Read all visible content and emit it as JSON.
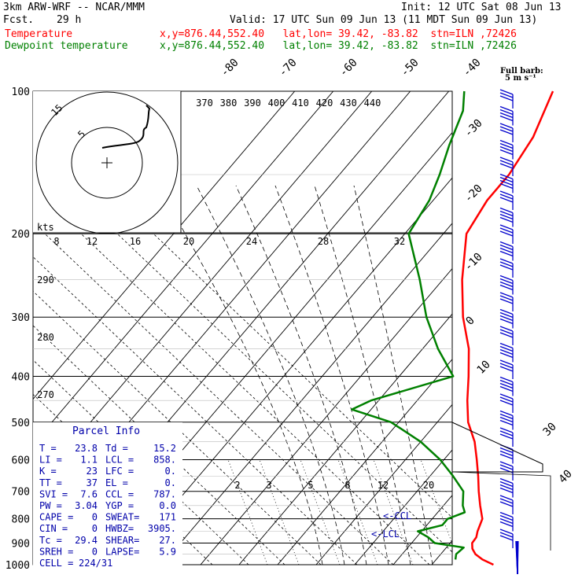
{
  "header": {
    "model": "3km ARW-WRF -- NCAR/MMM",
    "init": "Init: 12 UTC Sat 08 Jun 13",
    "fcst_label": "Fcst.",
    "fcst_value": "29 h",
    "valid": "Valid: 17 UTC Sun 09 Jun 13 (11 MDT Sun 09 Jun 13)",
    "temp_label": "Temperature",
    "temp_info": "x,y=876.44,552.40   lat,lon= 39.42, -83.82  stn=ILN ,72426",
    "dew_label": "Dewpoint temperature",
    "dew_info": "x,y=876.44,552.40   lat,lon= 39.42, -83.82  stn=ILN ,72426",
    "barb_note_1": "Full barb:",
    "barb_note_2": "5 m s⁻¹"
  },
  "colors": {
    "temperature": "#ff0000",
    "dewpoint": "#008000",
    "barbs": "#0000cc",
    "parcel": "#0000aa"
  },
  "chart_data": {
    "type": "skew-t",
    "y_axis": "pressure (hPa), log scale",
    "ylim": [
      1000,
      100
    ],
    "pressure_ticks": [
      100,
      200,
      300,
      400,
      500,
      600,
      700,
      800,
      900,
      1000
    ],
    "isotherm_labels": [
      "-80",
      "-70",
      "-60",
      "-50",
      "-40",
      "-30",
      "-20",
      "-10",
      "0",
      "10",
      "30",
      "40"
    ],
    "theta_labels_top": [
      "370",
      "380",
      "390",
      "400",
      "410",
      "420",
      "430",
      "440"
    ],
    "theta_labels_left": [
      "290",
      "280",
      "270"
    ],
    "mixing_ratio_labels": [
      "2",
      "3",
      "5",
      "8",
      "12",
      "20"
    ],
    "hodograph": {
      "unit_label": "kts",
      "ring_labels": [
        "5",
        "15"
      ],
      "scale_labels": [
        "8",
        "12",
        "16",
        "20",
        "24",
        "28",
        "32"
      ]
    },
    "temperature": [
      {
        "p": 1000,
        "t": 26
      },
      {
        "p": 975,
        "t": 22
      },
      {
        "p": 950,
        "t": 19
      },
      {
        "p": 925,
        "t": 17
      },
      {
        "p": 900,
        "t": 15.7
      },
      {
        "p": 875,
        "t": 15.5
      },
      {
        "p": 850,
        "t": 14.5
      },
      {
        "p": 800,
        "t": 13
      },
      {
        "p": 750,
        "t": 9.5
      },
      {
        "p": 700,
        "t": 6
      },
      {
        "p": 650,
        "t": 2.5
      },
      {
        "p": 600,
        "t": -1.5
      },
      {
        "p": 550,
        "t": -6
      },
      {
        "p": 500,
        "t": -12
      },
      {
        "p": 450,
        "t": -17
      },
      {
        "p": 400,
        "t": -22
      },
      {
        "p": 350,
        "t": -28
      },
      {
        "p": 300,
        "t": -36.5
      },
      {
        "p": 250,
        "t": -45
      },
      {
        "p": 200,
        "t": -54
      },
      {
        "p": 170,
        "t": -56
      },
      {
        "p": 150,
        "t": -56
      },
      {
        "p": 125,
        "t": -58
      },
      {
        "p": 100,
        "t": -63
      }
    ],
    "dewpoint": [
      {
        "p": 975,
        "t": 15
      },
      {
        "p": 950,
        "t": 14
      },
      {
        "p": 920,
        "t": 14.5
      },
      {
        "p": 900,
        "t": 6
      },
      {
        "p": 875,
        "t": 3
      },
      {
        "p": 850,
        "t": -1
      },
      {
        "p": 825,
        "t": 4
      },
      {
        "p": 800,
        "t": 4
      },
      {
        "p": 775,
        "t": 7
      },
      {
        "p": 750,
        "t": 5
      },
      {
        "p": 700,
        "t": 2
      },
      {
        "p": 650,
        "t": -4
      },
      {
        "p": 600,
        "t": -11
      },
      {
        "p": 550,
        "t": -20
      },
      {
        "p": 500,
        "t": -32
      },
      {
        "p": 470,
        "t": -45
      },
      {
        "p": 450,
        "t": -42
      },
      {
        "p": 400,
        "t": -26
      },
      {
        "p": 350,
        "t": -36
      },
      {
        "p": 300,
        "t": -46
      },
      {
        "p": 250,
        "t": -56
      },
      {
        "p": 200,
        "t": -69
      },
      {
        "p": 170,
        "t": -71
      },
      {
        "p": 150,
        "t": -74
      },
      {
        "p": 130,
        "t": -78
      },
      {
        "p": 110,
        "t": -82
      },
      {
        "p": 100,
        "t": -86
      }
    ],
    "lcl_label": "<-LCL",
    "ccl_label": "<-CCL",
    "parcel_info": {
      "title": "Parcel Info",
      "rows": [
        [
          "T  =",
          "23.8",
          "Td =",
          "15.2"
        ],
        [
          "LI =",
          "1.1",
          "LCL =",
          "858."
        ],
        [
          "K  =",
          "23",
          "LFC =",
          "0."
        ],
        [
          "TT =",
          "37",
          "EL =",
          "0."
        ],
        [
          "SVI =",
          "7.6",
          "CCL =",
          "787."
        ],
        [
          "PW =",
          "3.04",
          "YGP =",
          "0.0"
        ],
        [
          "CAPE =",
          "0",
          "SWEAT=",
          "171"
        ],
        [
          "CIN =",
          "0",
          "HWBZ=",
          "3905."
        ],
        [
          "Tc =",
          "29.4",
          "SHEAR=",
          "27."
        ],
        [
          "SREH =",
          "0",
          "LAPSE=",
          "5.9"
        ],
        [
          "CELL =",
          "224/31",
          "",
          ""
        ]
      ]
    }
  }
}
